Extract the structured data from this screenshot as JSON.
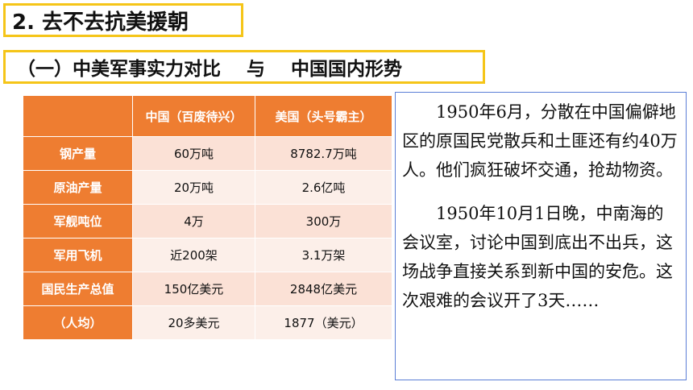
{
  "title": "2. 去不去抗美援朝",
  "subtitle": "（一）中美军事实力对比    与    中国国内形势",
  "table": {
    "headers": [
      "",
      "中国（百废待兴）",
      "美国（头号霸主）"
    ],
    "rows": [
      {
        "label": "钢产量",
        "china": "60万吨",
        "usa": "8782.7万吨"
      },
      {
        "label": "原油产量",
        "china": "20万吨",
        "usa": "2.6亿吨"
      },
      {
        "label": "军舰吨位",
        "china": "4万",
        "usa": "300万"
      },
      {
        "label": "军用飞机",
        "china": "近200架",
        "usa": "3.1万架"
      },
      {
        "label": "国民生产总值",
        "china": "150亿美元",
        "usa": "2848亿美元"
      },
      {
        "label": "（人均）",
        "china": "20多美元",
        "usa": "1877（美元）"
      }
    ]
  },
  "text": {
    "para1": "1950年6月，分散在中国偏僻地区的原国民党散兵和土匪还有约40万人。他们疯狂破坏交通，抢劫物资。",
    "para2": "1950年10月1日晚，中南海的会议室，讨论中国到底出不出兵，这场战争直接关系到新中国的安危。这次艰难的会议开了3天……"
  },
  "colors": {
    "accent_border": "#f5c518",
    "table_header": "#ee7d31",
    "cell_fill": "#fbe1d6",
    "textbox_border": "#5b7ed6"
  }
}
